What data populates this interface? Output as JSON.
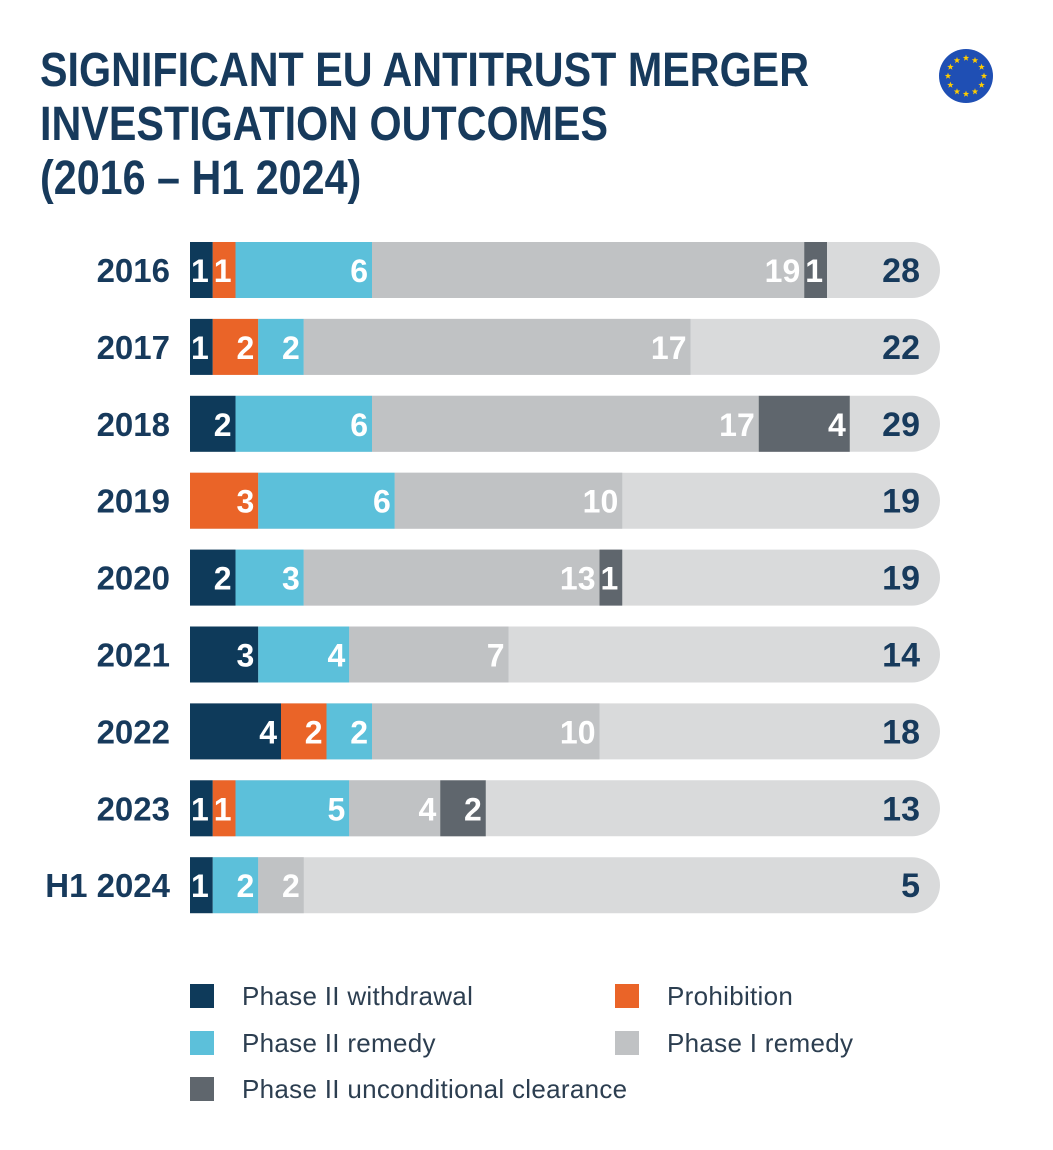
{
  "title_lines": [
    "SIGNIFICANT EU ANTITRUST MERGER",
    "INVESTIGATION OUTCOMES",
    "(2016 – H1 2024)"
  ],
  "colors": {
    "title": "#173a5c",
    "phase2_withdrawal": "#0e3a5a",
    "prohibition": "#ea6428",
    "phase2_remedy": "#5cc0da",
    "phase1_remedy": "#c0c2c4",
    "phase2_unconditional": "#5f666d",
    "track": "#d9dadb",
    "flag_blue": "#1f4fb4",
    "flag_star": "#ffcc00"
  },
  "legend": {
    "items": [
      {
        "label": "Phase II withdrawal",
        "series": "phase2_withdrawal"
      },
      {
        "label": "Prohibition",
        "series": "prohibition"
      },
      {
        "label": "Phase II remedy",
        "series": "phase2_remedy"
      },
      {
        "label": "Phase I remedy",
        "series": "phase1_remedy"
      },
      {
        "label": "Phase II unconditional clearance",
        "series": "phase2_unconditional"
      }
    ]
  },
  "chart_data": {
    "type": "bar",
    "orientation": "horizontal",
    "stacked": true,
    "categories": [
      "2016",
      "2017",
      "2018",
      "2019",
      "2020",
      "2021",
      "2022",
      "2023",
      "H1 2024"
    ],
    "totals": [
      28,
      22,
      29,
      19,
      19,
      14,
      18,
      13,
      5
    ],
    "series": [
      {
        "name": "Phase II withdrawal",
        "key": "phase2_withdrawal",
        "values": [
          1,
          1,
          2,
          0,
          2,
          3,
          4,
          1,
          1
        ]
      },
      {
        "name": "Prohibition",
        "key": "prohibition",
        "values": [
          1,
          2,
          0,
          3,
          0,
          0,
          2,
          1,
          0
        ]
      },
      {
        "name": "Phase II remedy",
        "key": "phase2_remedy",
        "values": [
          6,
          2,
          6,
          6,
          3,
          4,
          2,
          5,
          2
        ]
      },
      {
        "name": "Phase I remedy",
        "key": "phase1_remedy",
        "values": [
          19,
          17,
          17,
          10,
          13,
          7,
          10,
          4,
          2
        ]
      },
      {
        "name": "Phase II unconditional clearance",
        "key": "phase2_unconditional",
        "values": [
          1,
          0,
          4,
          0,
          1,
          0,
          0,
          2,
          0
        ]
      }
    ],
    "xlim": [
      0,
      33
    ],
    "legend_position": "bottom",
    "grid": false
  }
}
